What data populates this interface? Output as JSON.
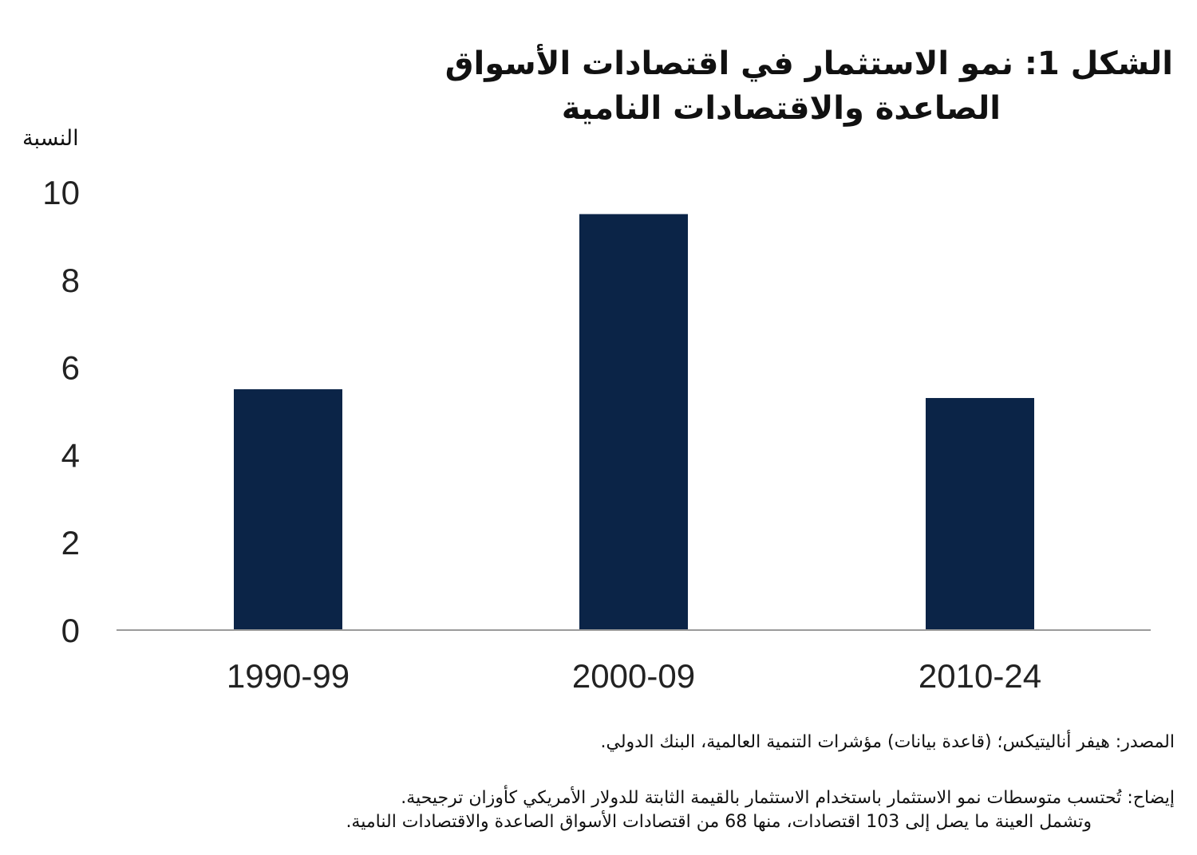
{
  "title_line1": "الشكل 1: نمو الاستثمار في اقتصادات الأسواق",
  "title_line2": "الصاعدة والاقتصادات النامية",
  "chart_data": {
    "type": "bar",
    "ylabel": "النسبة",
    "categories": [
      "1990-99",
      "2000-09",
      "2010-24"
    ],
    "values": [
      5.5,
      9.5,
      5.3
    ],
    "ylim": [
      0,
      10
    ],
    "yticks": [
      "0",
      "2",
      "4",
      "6",
      "8",
      "10"
    ],
    "bar_color": "#0b2447",
    "grid": false
  },
  "source": "المصدر: هيفر أناليتيكس؛ (قاعدة بيانات) مؤشرات التنمية العالمية، البنك الدولي.",
  "note_line1": "إيضاح: تُحتسب متوسطات نمو الاستثمار باستخدام الاستثمار بالقيمة الثابتة للدولار الأمريكي كأوزان ترجيحية.",
  "note_line2": "وتشمل العينة ما يصل إلى 103 اقتصادات، منها 68 من اقتصادات الأسواق الصاعدة والاقتصادات النامية."
}
